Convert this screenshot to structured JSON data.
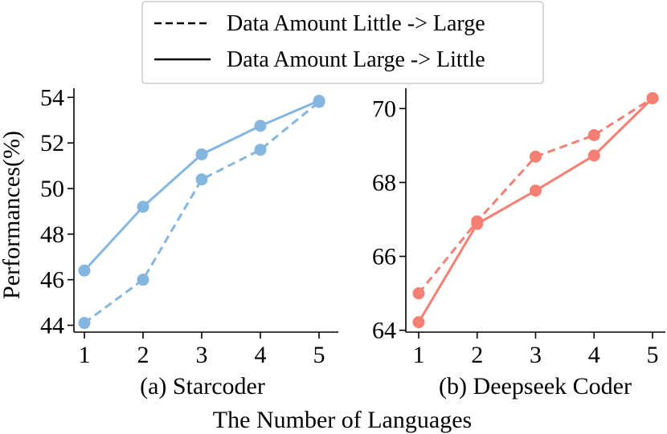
{
  "colors": {
    "starcoder": "#85B6E0",
    "deepseek": "#F47F72",
    "legend_line": "#000000"
  },
  "legend": {
    "entries": [
      {
        "label": "Data Amount Little -> Large",
        "style": "dashed"
      },
      {
        "label": "Data Amount Large -> Little",
        "style": "solid"
      }
    ]
  },
  "shared_ylabel": "Performances(%)",
  "shared_xlabel": "The Number of Languages",
  "chart_data": [
    {
      "type": "line",
      "title": "(a) Starcoder",
      "categories": [
        1,
        2,
        3,
        4,
        5
      ],
      "ylim": [
        43.7,
        54.4
      ],
      "yticks": [
        44,
        46,
        48,
        50,
        52,
        54
      ],
      "series": [
        {
          "name": "Data Amount Little -> Large",
          "style": "dashed",
          "values": [
            44.1,
            46.0,
            50.4,
            51.7,
            53.8
          ]
        },
        {
          "name": "Data Amount Large -> Little",
          "style": "solid",
          "values": [
            46.4,
            49.2,
            51.5,
            52.75,
            53.85
          ]
        }
      ]
    },
    {
      "type": "line",
      "title": "(b) Deepseek Coder",
      "categories": [
        1,
        2,
        3,
        4,
        5
      ],
      "ylim": [
        63.95,
        70.55
      ],
      "yticks": [
        64,
        66,
        68,
        70
      ],
      "series": [
        {
          "name": "Data Amount Little -> Large",
          "style": "dashed",
          "values": [
            65.0,
            66.95,
            68.7,
            69.28,
            70.28
          ]
        },
        {
          "name": "Data Amount Large -> Little",
          "style": "solid",
          "values": [
            64.22,
            66.88,
            67.78,
            68.73,
            70.28
          ]
        }
      ]
    }
  ]
}
